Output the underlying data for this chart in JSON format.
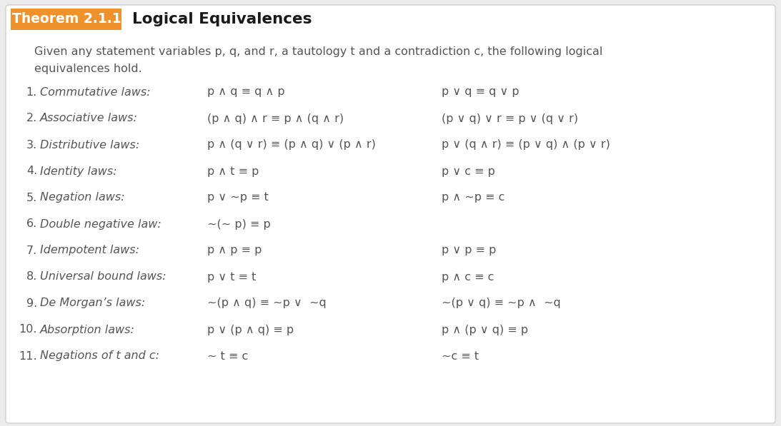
{
  "bg_color": "#ebebeb",
  "card_bg": "#ffffff",
  "header_orange_bg": "#f0922b",
  "header_orange_text": "#ffffff",
  "header_black_text": "#1a1a1a",
  "theorem_label": "Theorem 2.1.1",
  "theorem_title": "Logical Equivalences",
  "intro_line1": "Given any statement variables p, q, and r, a tautology t and a contradiction c, the following logical",
  "intro_line2": "equivalences hold.",
  "laws": [
    {
      "num": "1.",
      "name": "Commutative laws:",
      "left": "p ∧ q ≡ q ∧ p",
      "right": "p ∨ q ≡ q ∨ p"
    },
    {
      "num": "2.",
      "name": "Associative laws:",
      "left": "(p ∧ q) ∧ r ≡ p ∧ (q ∧ r)",
      "right": "(p ∨ q) ∨ r ≡ p ∨ (q ∨ r)"
    },
    {
      "num": "3.",
      "name": "Distributive laws:",
      "left": "p ∧ (q ∨ r) ≡ (p ∧ q) ∨ (p ∧ r)",
      "right": "p ∨ (q ∧ r) ≡ (p ∨ q) ∧ (p ∨ r)"
    },
    {
      "num": "4.",
      "name": "Identity laws:",
      "left": "p ∧ t ≡ p",
      "right": "p ∨ c ≡ p"
    },
    {
      "num": "5.",
      "name": "Negation laws:",
      "left": "p ∨ ~p ≡ t",
      "right": "p ∧ ~p ≡ c"
    },
    {
      "num": "6.",
      "name": "Double negative law:",
      "left": "~(~ p) ≡ p",
      "right": ""
    },
    {
      "num": "7.",
      "name": "Idempotent laws:",
      "left": "p ∧ p ≡ p",
      "right": "p ∨ p ≡ p"
    },
    {
      "num": "8.",
      "name": "Universal bound laws:",
      "left": "p ∨ t ≡ t",
      "right": "p ∧ c ≡ c"
    },
    {
      "num": "9.",
      "name": "De Morgan’s laws:",
      "left": "~(p ∧ q) ≡ ~p ∨  ~q",
      "right": "~(p ∨ q) ≡ ~p ∧  ~q"
    },
    {
      "num": "10.",
      "name": "Absorption laws:",
      "left": "p ∨ (p ∧ q) ≡ p",
      "right": "p ∧ (p ∨ q) ≡ p"
    },
    {
      "num": "11.",
      "name": "Negations of t and c:",
      "left": "~ t ≡ c",
      "right": "~c ≡ t"
    }
  ],
  "text_color": "#555555",
  "formula_color": "#555555"
}
